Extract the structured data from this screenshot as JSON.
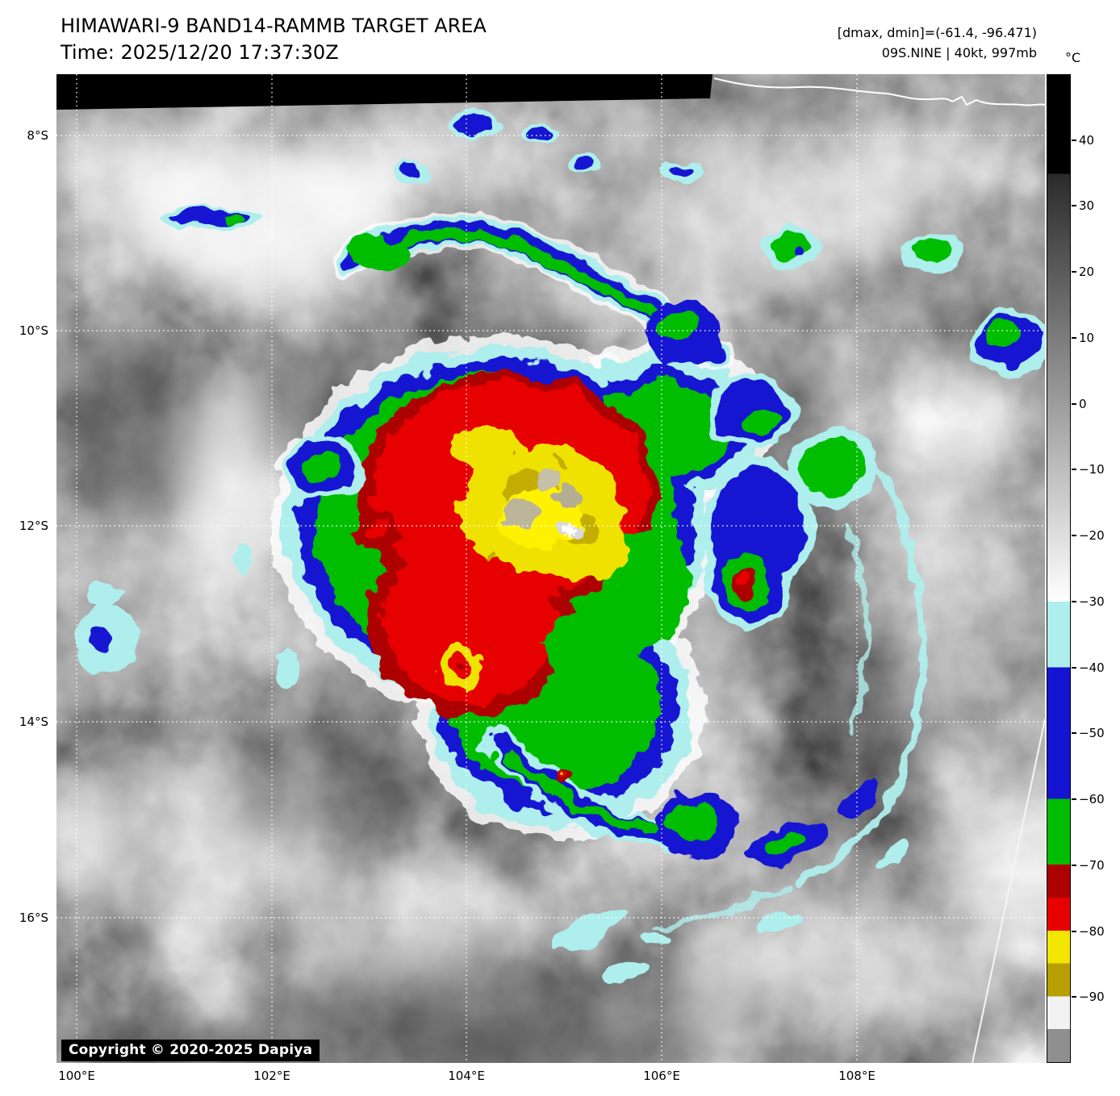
{
  "header": {
    "title": "HIMAWARI-9 BAND14-RAMMB TARGET AREA",
    "time": "Time: 2025/12/20 17:37:30Z",
    "range": "[dmax, dmin]=(-61.4, -96.471)",
    "storm": "09S.NINE | 40kt, 997mb"
  },
  "colorbar": {
    "unit": "°C",
    "domain": [
      50,
      -100
    ],
    "ticks": [
      "40",
      "30",
      "20",
      "10",
      "0",
      "−10",
      "−20",
      "−30",
      "−40",
      "−50",
      "−60",
      "−70",
      "−80",
      "−90"
    ],
    "segments": [
      {
        "from": 50,
        "to": 35,
        "color": "#000000"
      },
      {
        "from": 35,
        "to": -30,
        "gradient": true,
        "color_start": "#2a2a2a",
        "color_end": "#ffffff"
      },
      {
        "from": -30,
        "to": -40,
        "color": "#aeeeec"
      },
      {
        "from": -40,
        "to": -60,
        "color": "#1414d2"
      },
      {
        "from": -60,
        "to": -70,
        "color": "#00bd00"
      },
      {
        "from": -70,
        "to": -75,
        "color": "#ad0000"
      },
      {
        "from": -75,
        "to": -80,
        "color": "#e60000"
      },
      {
        "from": -80,
        "to": -85,
        "color": "#f2e600"
      },
      {
        "from": -85,
        "to": -90,
        "color": "#b7a000"
      },
      {
        "from": -90,
        "to": -95,
        "color": "#f2f2f2"
      },
      {
        "from": -95,
        "to": -100,
        "color": "#8f8f8f"
      }
    ]
  },
  "map": {
    "lat_labels": [
      "8°S",
      "10°S",
      "12°S",
      "14°S",
      "16°S"
    ],
    "lon_labels": [
      "100°E",
      "102°E",
      "104°E",
      "106°E",
      "108°E"
    ],
    "copyright": "Copyright © 2020-2025 Dapiya"
  }
}
